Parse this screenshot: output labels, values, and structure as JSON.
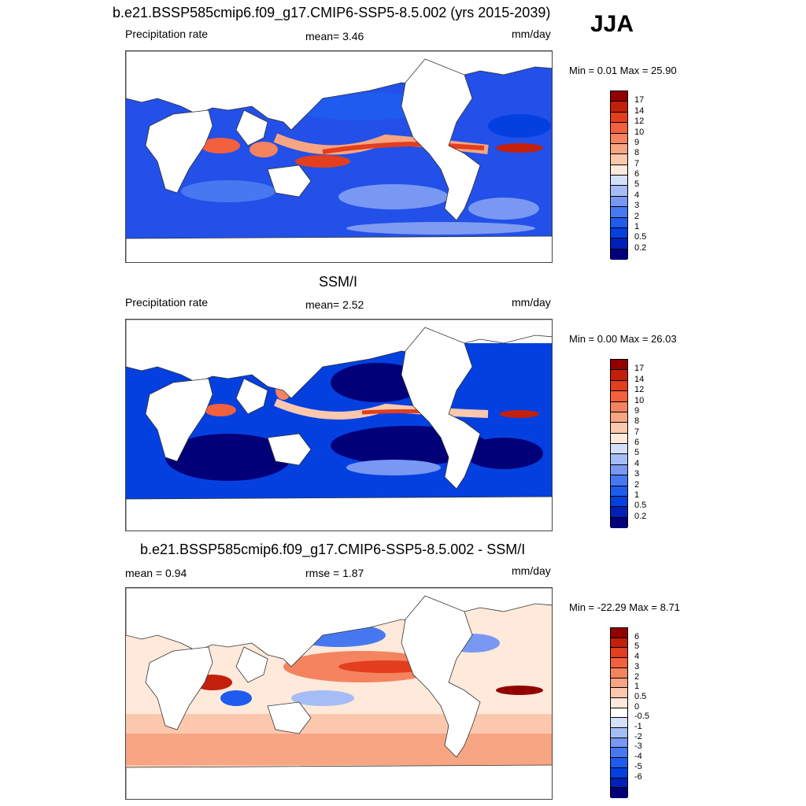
{
  "season": "JJA",
  "palette_main": [
    "#020079",
    "#0020B7",
    "#0440E0",
    "#1E5BEE",
    "#4878F1",
    "#7898F4",
    "#A6BCF7",
    "#D2E0FA",
    "#FEE9DA",
    "#FBC8AE",
    "#F7A583",
    "#F5835F",
    "#F3603E",
    "#E33E1D",
    "#C3200B",
    "#930000"
  ],
  "palette_diff": [
    "#020079",
    "#0020B7",
    "#0440E0",
    "#1E5BEE",
    "#4878F1",
    "#7898F4",
    "#A6BCF7",
    "#D2E0FA",
    "#FFFFFF",
    "#FEE9DA",
    "#FBC8AE",
    "#F7A583",
    "#F5835F",
    "#F3603E",
    "#E33E1D",
    "#C3200B",
    "#930000"
  ],
  "panels": [
    {
      "title": "b.e21.BSSP585cmip6.f09_g17.CMIP6-SSP5-8.5.002 (yrs 2015-2039)",
      "left_label": "Precipitation rate",
      "center_label": "mean=   3.46",
      "units": "mm/day",
      "minmax": "Min =   0.01 Max =  25.90",
      "ticks": [
        "17",
        "14",
        "12",
        "10",
        "9",
        "8",
        "7",
        "6",
        "5",
        "4",
        "3",
        "2",
        "1",
        "0.5",
        "0.2"
      ]
    },
    {
      "title": "SSM/I",
      "left_label": "Precipitation rate",
      "center_label": "mean=   2.52",
      "units": "mm/day",
      "minmax": "Min =   0.00 Max =  26.03",
      "ticks": [
        "17",
        "14",
        "12",
        "10",
        "9",
        "8",
        "7",
        "6",
        "5",
        "4",
        "3",
        "2",
        "1",
        "0.5",
        "0.2"
      ]
    },
    {
      "title": "b.e21.BSSP585cmip6.f09_g17.CMIP6-SSP5-8.5.002 - SSM/I",
      "left_label": "mean =   0.94",
      "center_label": "rmse =   1.87",
      "units": "mm/day",
      "minmax": "Min = -22.29 Max =   8.71",
      "ticks": [
        "6",
        "5",
        "4",
        "3",
        "2",
        "1",
        "0.5",
        "0",
        "-0.5",
        "-1",
        "-2",
        "-3",
        "-4",
        "-5",
        "-6"
      ]
    }
  ]
}
